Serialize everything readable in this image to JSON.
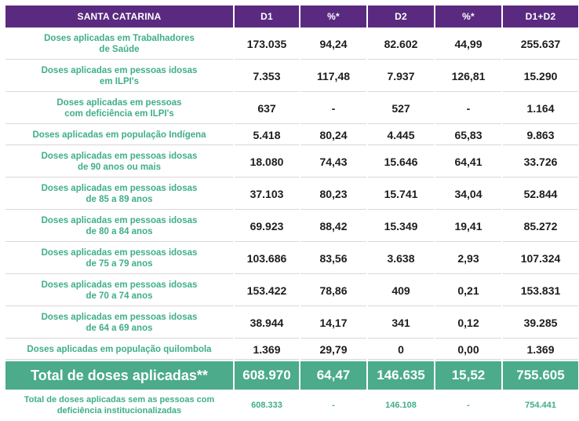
{
  "table": {
    "headers": [
      "SANTA CATARINA",
      "D1",
      "%*",
      "D2",
      "%*",
      "D1+D2"
    ],
    "rows": [
      {
        "label": "Doses aplicadas em Trabalhadores\nde Saúde",
        "d1": "173.035",
        "p1": "94,24",
        "d2": "82.602",
        "p2": "44,99",
        "total": "255.637"
      },
      {
        "label": "Doses aplicadas em pessoas idosas\nem ILPI's",
        "d1": "7.353",
        "p1": "117,48",
        "d2": "7.937",
        "p2": "126,81",
        "total": "15.290"
      },
      {
        "label": "Doses aplicadas em pessoas\ncom deficiência em ILPI's",
        "d1": "637",
        "p1": "-",
        "d2": "527",
        "p2": "-",
        "total": "1.164"
      },
      {
        "label": "Doses aplicadas em população Indígena",
        "d1": "5.418",
        "p1": "80,24",
        "d2": "4.445",
        "p2": "65,83",
        "total": "9.863"
      },
      {
        "label": "Doses aplicadas em pessoas idosas\nde 90 anos ou mais",
        "d1": "18.080",
        "p1": "74,43",
        "d2": "15.646",
        "p2": "64,41",
        "total": "33.726"
      },
      {
        "label": "Doses aplicadas em pessoas idosas\nde 85 a 89 anos",
        "d1": "37.103",
        "p1": "80,23",
        "d2": "15.741",
        "p2": "34,04",
        "total": "52.844"
      },
      {
        "label": "Doses aplicadas em pessoas idosas\nde 80 a 84 anos",
        "d1": "69.923",
        "p1": "88,42",
        "d2": "15.349",
        "p2": "19,41",
        "total": "85.272"
      },
      {
        "label": "Doses aplicadas em pessoas idosas\nde 75 a 79 anos",
        "d1": "103.686",
        "p1": "83,56",
        "d2": "3.638",
        "p2": "2,93",
        "total": "107.324"
      },
      {
        "label": "Doses aplicadas em pessoas idosas\nde 70 a 74 anos",
        "d1": "153.422",
        "p1": "78,86",
        "d2": "409",
        "p2": "0,21",
        "total": "153.831"
      },
      {
        "label": "Doses aplicadas em pessoas idosas\nde 64 a 69 anos",
        "d1": "38.944",
        "p1": "14,17",
        "d2": "341",
        "p2": "0,12",
        "total": "39.285"
      },
      {
        "label": "Doses aplicadas em população quilombola",
        "d1": "1.369",
        "p1": "29,79",
        "d2": "0",
        "p2": "0,00",
        "total": "1.369"
      }
    ],
    "total_row": {
      "label": "Total de doses aplicadas**",
      "d1": "608.970",
      "p1": "64,47",
      "d2": "146.635",
      "p2": "15,52",
      "total": "755.605"
    },
    "footer_row": {
      "label": "Total de doses aplicadas sem as pessoas com\ndeficiência institucionalizadas",
      "d1": "608.333",
      "p1": "-",
      "d2": "146.108",
      "p2": "-",
      "total": "754.441"
    }
  },
  "colors": {
    "header_bg": "#5a2a80",
    "label_text": "#3fae88",
    "total_bg": "#4bab8a",
    "value_text": "#1d1d1d"
  }
}
